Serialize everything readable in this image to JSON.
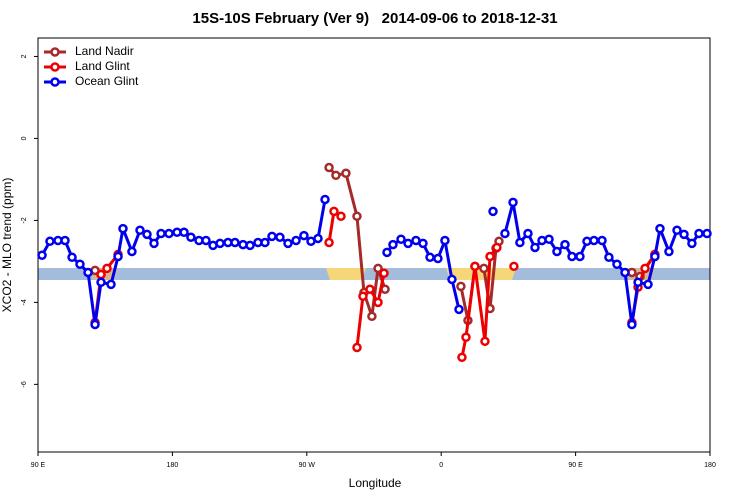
{
  "chart_data": {
    "type": "line",
    "title": "15S-10S February (Ver 9)   2014-09-06 to 2018-12-31",
    "x_label": "Longitude",
    "y_label": "XCO2 - MLO trend (ppm)",
    "xlim": [
      90,
      540
    ],
    "ylim": [
      -7.65,
      2.45
    ],
    "xticks": [
      {
        "value": 90,
        "label": "90 E"
      },
      180,
      {
        "value": 270,
        "label": "90 W"
      },
      {
        "value": 360,
        "label": "0"
      },
      {
        "value": 450,
        "label": "90 E"
      },
      180.0000001
    ],
    "yticks": [
      -6,
      -4,
      -2,
      0,
      2
    ],
    "legend": "top-left",
    "series": [
      {
        "name": "Land Nadir",
        "color": "#a52a2a",
        "x": [
          128.2,
          132.2,
          200,
          284.9,
          289.5,
          296.2,
          303.6,
          308.3,
          313.6,
          317.7,
          322.4,
          350,
          373.2,
          377.9,
          382.6,
          388.6,
          392.7,
          396.7,
          398.7,
          450,
          487.7,
          493.1,
          503.1
        ],
        "values": [
          -3.22,
          -3.32,
          null,
          -0.71,
          -0.9,
          -0.85,
          -1.9,
          -3.76,
          -4.34,
          -3.17,
          -3.68,
          null,
          -3.61,
          -4.44,
          -3.12,
          -3.17,
          -4.15,
          -2.68,
          -2.51,
          null,
          -3.27,
          -3.37,
          -2.83
        ]
      },
      {
        "name": "Land Glint",
        "color": "#ee0000",
        "x": [
          128.2,
          132.2,
          136.2,
          143.6,
          200,
          284.9,
          288.2,
          292.9,
          298,
          303.6,
          307.6,
          312.3,
          317.7,
          321.7,
          350,
          373.9,
          376.6,
          382.6,
          389.3,
          392.7,
          397.3,
          403,
          408.7,
          450,
          487.7,
          491.8,
          496.5,
          503.1
        ],
        "values": [
          -4.49,
          -3.32,
          -3.17,
          -2.83,
          null,
          -2.54,
          -1.78,
          -1.9,
          null,
          -5.1,
          -3.85,
          -3.68,
          -4.0,
          -3.29,
          null,
          -5.34,
          -4.85,
          -3.12,
          -4.95,
          -2.88,
          -2.66,
          null,
          -3.12,
          null,
          -4.49,
          -3.63,
          -3.17,
          -2.83
        ]
      },
      {
        "name": "Ocean Glint",
        "color": "#0000ee",
        "x": [
          92.7,
          98.0,
          103.4,
          108.1,
          112.8,
          118.1,
          123.5,
          128.2,
          132.2,
          138.9,
          143.6,
          146.9,
          152.9,
          158.3,
          163.0,
          167.7,
          172.4,
          177.7,
          183.1,
          187.8,
          192.4,
          197.8,
          202.5,
          207.2,
          211.9,
          217.2,
          221.9,
          227.3,
          232.0,
          237.3,
          242.0,
          246.7,
          252.0,
          257.4,
          262.8,
          268.1,
          272.8,
          277.5,
          282.2,
          300,
          323.7,
          327.7,
          333.1,
          337.8,
          343.1,
          347.8,
          352.5,
          357.8,
          362.5,
          367.2,
          371.9,
          380,
          394.7,
          398,
          402.7,
          408.1,
          412.7,
          418.1,
          422.8,
          427.5,
          432.2,
          437.5,
          442.9,
          447.6,
          452.9,
          457.6,
          462.3,
          467.7,
          472.3,
          477.7,
          483.1,
          487.7,
          491.8,
          498.5,
          503.1,
          506.5,
          512.5,
          517.9,
          522.6,
          527.9,
          532.6,
          538.0
        ],
        "values": [
          -2.85,
          -2.51,
          -2.49,
          -2.49,
          -2.9,
          -3.07,
          -3.27,
          -4.54,
          -3.51,
          -3.56,
          -2.88,
          -2.2,
          -2.76,
          -2.24,
          -2.34,
          -2.56,
          -2.32,
          -2.32,
          -2.29,
          -2.29,
          -2.41,
          -2.49,
          -2.49,
          -2.61,
          -2.56,
          -2.54,
          -2.54,
          -2.59,
          -2.61,
          -2.54,
          -2.54,
          -2.39,
          -2.41,
          -2.56,
          -2.49,
          -2.37,
          -2.51,
          -2.44,
          -1.49,
          null,
          -2.78,
          -2.59,
          -2.46,
          -2.56,
          -2.49,
          -2.56,
          -2.9,
          -2.93,
          -2.49,
          -3.44,
          -4.17,
          null,
          -1.78,
          null,
          -2.32,
          -1.56,
          -2.54,
          -2.32,
          -2.66,
          -2.49,
          -2.46,
          -2.76,
          -2.59,
          -2.88,
          -2.88,
          -2.51,
          -2.49,
          -2.49,
          -2.9,
          -3.07,
          -3.27,
          -4.54,
          -3.51,
          -3.56,
          -2.88,
          -2.2,
          -2.76,
          -2.24,
          -2.34,
          -2.56,
          -2.32,
          -2.32
        ]
      }
    ]
  }
}
